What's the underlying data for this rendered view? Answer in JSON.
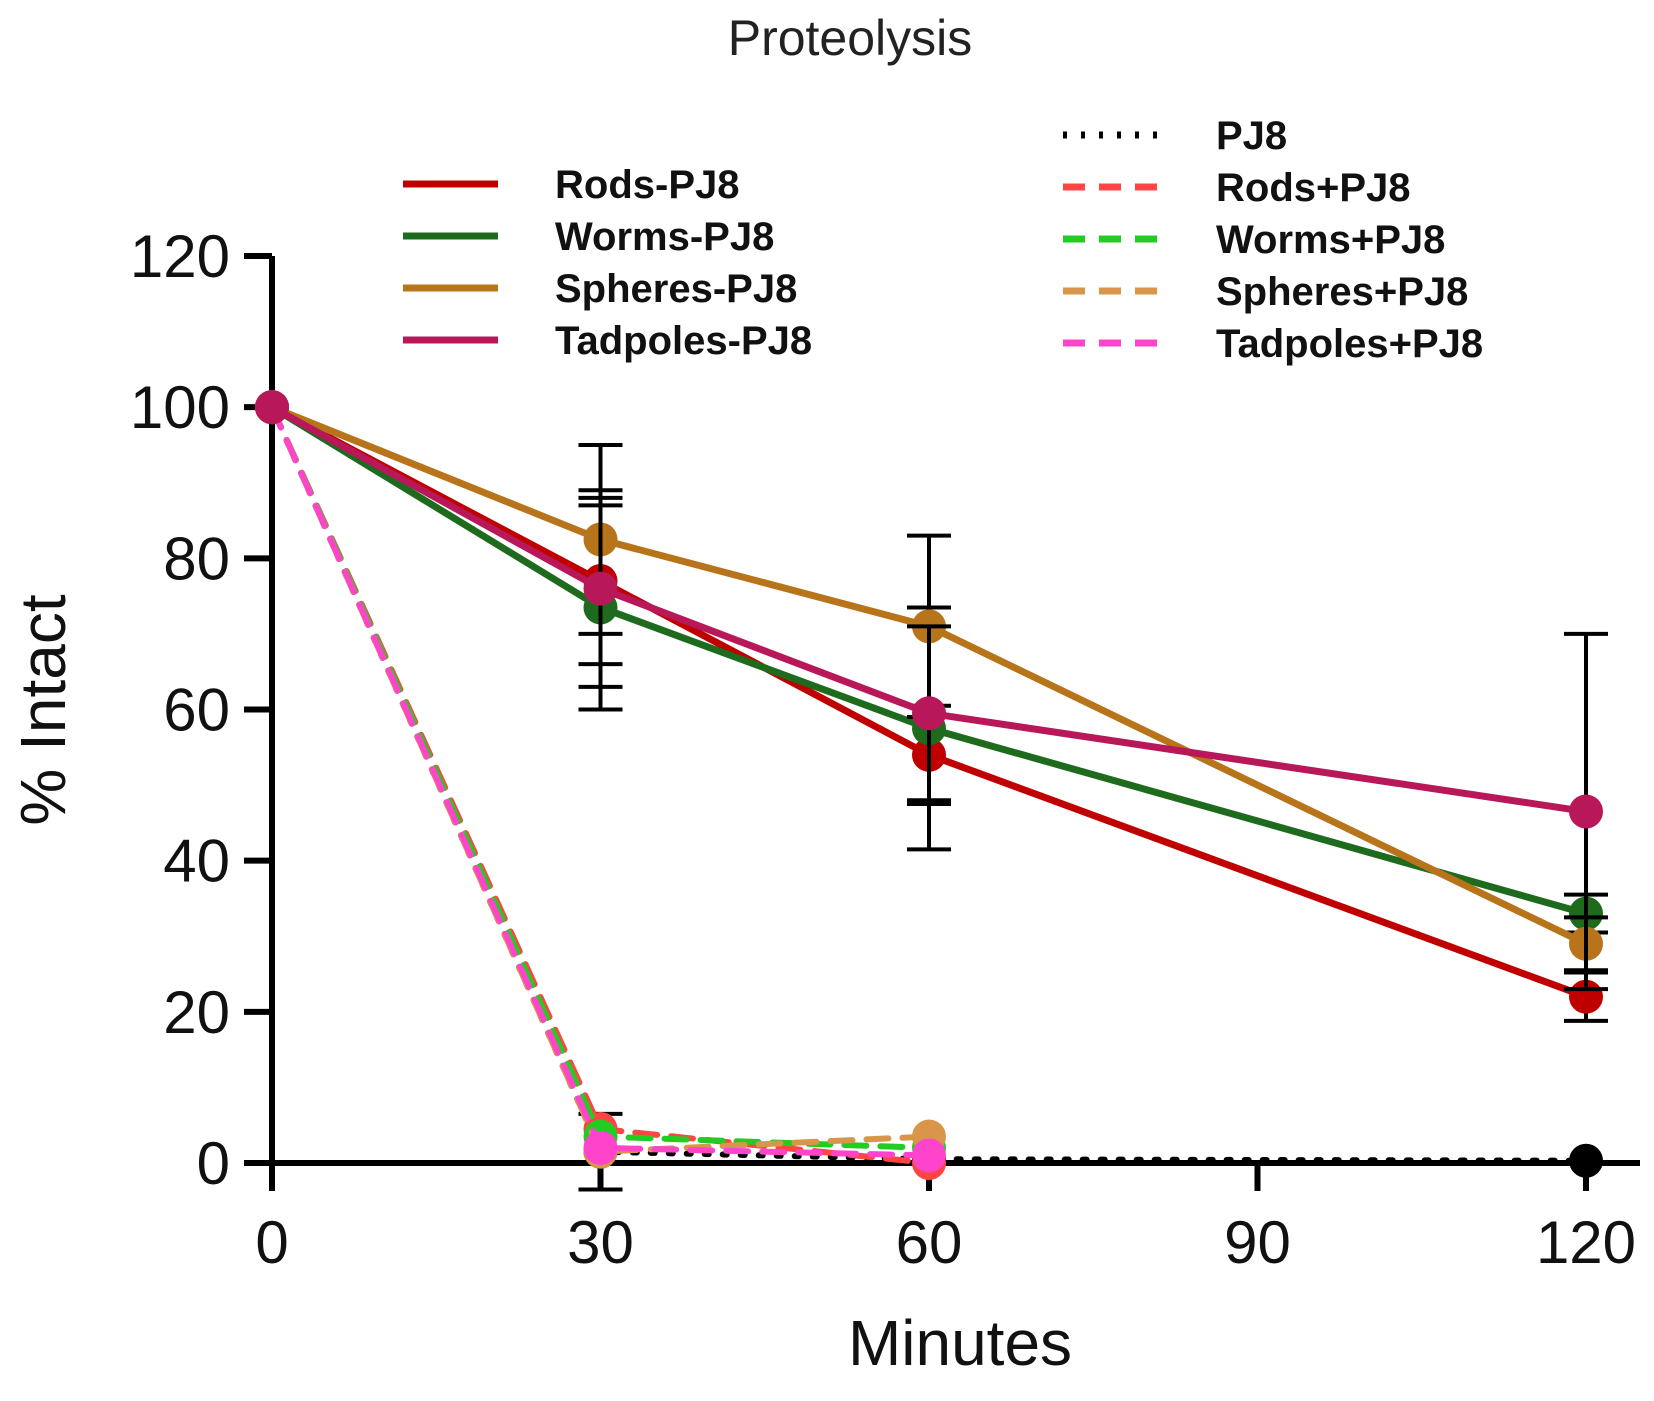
{
  "chart_data": {
    "type": "line",
    "title": "Proteolysis",
    "xlabel": "Minutes",
    "ylabel": "% Intact",
    "xlim": [
      0,
      123
    ],
    "ylim": [
      0,
      120
    ],
    "xticks": [
      0,
      30,
      60,
      90,
      120
    ],
    "yticks": [
      0,
      20,
      40,
      60,
      80,
      100,
      120
    ],
    "legend_placement": "top",
    "series": [
      {
        "name": "Rods-PJ8",
        "color": "#c00000",
        "style": "solid",
        "marker": "circle",
        "x": [
          0,
          30,
          60,
          120
        ],
        "y": [
          100,
          77,
          54,
          22
        ],
        "err": [
          0,
          11,
          6.5,
          3.2
        ]
      },
      {
        "name": "Worms-PJ8",
        "color": "#1e6b1e",
        "style": "solid",
        "marker": "circle",
        "x": [
          0,
          30,
          60,
          120
        ],
        "y": [
          100,
          73.5,
          57.5,
          33
        ],
        "err": [
          0,
          13.5,
          16,
          2.5
        ]
      },
      {
        "name": "Spheres-PJ8",
        "color": "#b8741a",
        "style": "solid",
        "marker": "circle",
        "x": [
          0,
          30,
          60,
          120
        ],
        "y": [
          100,
          82.5,
          71,
          29
        ],
        "err": [
          0,
          12.5,
          12,
          3.5
        ]
      },
      {
        "name": "Tadpoles-PJ8",
        "color": "#b8175a",
        "style": "solid",
        "marker": "circle",
        "x": [
          0,
          30,
          60,
          120
        ],
        "y": [
          100,
          76,
          59.5,
          46.5
        ],
        "err": [
          0,
          13,
          11.5,
          23.5
        ]
      },
      {
        "name": "PJ8",
        "color": "#000000",
        "style": "dotted",
        "marker": "circle",
        "x": [
          0,
          30,
          60,
          120
        ],
        "y": [
          100,
          1.5,
          0.5,
          0.3
        ],
        "err": [
          0,
          5,
          0,
          0
        ]
      },
      {
        "name": "Rods+PJ8",
        "color": "#ff4444",
        "style": "dashed",
        "marker": "circle",
        "x": [
          0,
          30,
          60
        ],
        "y": [
          100,
          4.5,
          0
        ],
        "err": [
          0,
          0,
          0
        ]
      },
      {
        "name": "Worms+PJ8",
        "color": "#22cc22",
        "style": "dashed",
        "marker": "circle",
        "x": [
          0,
          30,
          60
        ],
        "y": [
          100,
          3.5,
          2
        ],
        "err": [
          0,
          0,
          0
        ]
      },
      {
        "name": "Spheres+PJ8",
        "color": "#d9954a",
        "style": "dashed",
        "marker": "circle",
        "x": [
          0,
          30,
          60
        ],
        "y": [
          100,
          1.5,
          3.5
        ],
        "err": [
          0,
          0,
          0
        ]
      },
      {
        "name": "Tadpoles+PJ8",
        "color": "#ff44cc",
        "style": "dashed",
        "marker": "circle",
        "x": [
          0,
          30,
          60
        ],
        "y": [
          100,
          2,
          1
        ],
        "err": [
          0,
          0,
          0
        ]
      }
    ],
    "legend_order": [
      "Rods-PJ8",
      "Worms-PJ8",
      "Spheres-PJ8",
      "Tadpoles-PJ8",
      "PJ8",
      "Rods+PJ8",
      "Worms+PJ8",
      "Spheres+PJ8",
      "Tadpoles+PJ8"
    ]
  }
}
